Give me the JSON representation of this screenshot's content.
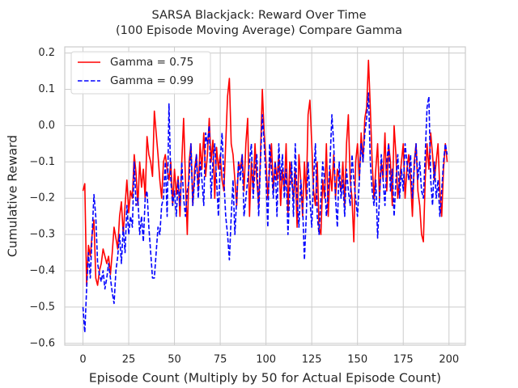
{
  "chart_data": {
    "type": "line",
    "title": "SARSA Blackjack: Reward Over Time\n(100 Episode Moving Average) Compare Gamma",
    "xlabel": "Episode Count (Multiply by 50 for Actual Episode Count)",
    "ylabel": "Cumulative Reward",
    "x": [
      0,
      1,
      2,
      3,
      4,
      5,
      6,
      7,
      8,
      9,
      10,
      11,
      12,
      13,
      14,
      15,
      16,
      17,
      18,
      19,
      20,
      21,
      22,
      23,
      24,
      25,
      26,
      27,
      28,
      29,
      30,
      31,
      32,
      33,
      34,
      35,
      36,
      37,
      38,
      39,
      40,
      41,
      42,
      43,
      44,
      45,
      46,
      47,
      48,
      49,
      50,
      51,
      52,
      53,
      54,
      55,
      56,
      57,
      58,
      59,
      60,
      61,
      62,
      63,
      64,
      65,
      66,
      67,
      68,
      69,
      70,
      71,
      72,
      73,
      74,
      75,
      76,
      77,
      78,
      79,
      80,
      81,
      82,
      83,
      84,
      85,
      86,
      87,
      88,
      89,
      90,
      91,
      92,
      93,
      94,
      95,
      96,
      97,
      98,
      99,
      100,
      101,
      102,
      103,
      104,
      105,
      106,
      107,
      108,
      109,
      110,
      111,
      112,
      113,
      114,
      115,
      116,
      117,
      118,
      119,
      120,
      121,
      122,
      123,
      124,
      125,
      126,
      127,
      128,
      129,
      130,
      131,
      132,
      133,
      134,
      135,
      136,
      137,
      138,
      139,
      140,
      141,
      142,
      143,
      144,
      145,
      146,
      147,
      148,
      149,
      150,
      151,
      152,
      153,
      154,
      155,
      156,
      157,
      158,
      159,
      160,
      161,
      162,
      163,
      164,
      165,
      166,
      167,
      168,
      169,
      170,
      171,
      172,
      173,
      174,
      175,
      176,
      177,
      178,
      179,
      180,
      181,
      182,
      183,
      184,
      185,
      186,
      187,
      188,
      189,
      190,
      191,
      192,
      193,
      194,
      195,
      196,
      197,
      198,
      199
    ],
    "series": [
      {
        "name": "Gamma = 0.75",
        "color": "#ff0000",
        "dash": "solid",
        "values": [
          -0.18,
          -0.16,
          -0.44,
          -0.33,
          -0.36,
          -0.3,
          -0.26,
          -0.42,
          -0.44,
          -0.4,
          -0.38,
          -0.34,
          -0.36,
          -0.38,
          -0.36,
          -0.41,
          -0.35,
          -0.28,
          -0.31,
          -0.34,
          -0.25,
          -0.21,
          -0.3,
          -0.22,
          -0.15,
          -0.24,
          -0.18,
          -0.2,
          -0.08,
          -0.13,
          -0.22,
          -0.1,
          -0.17,
          -0.12,
          -0.2,
          -0.03,
          -0.08,
          -0.1,
          -0.14,
          0.04,
          -0.02,
          -0.08,
          -0.15,
          -0.2,
          -0.1,
          -0.08,
          -0.12,
          -0.15,
          -0.1,
          -0.22,
          -0.12,
          -0.19,
          -0.14,
          -0.25,
          -0.1,
          0.02,
          -0.15,
          -0.3,
          -0.1,
          -0.05,
          -0.22,
          -0.12,
          -0.08,
          -0.18,
          -0.05,
          -0.12,
          -0.02,
          -0.14,
          -0.08,
          0.02,
          -0.1,
          -0.04,
          -0.2,
          -0.06,
          -0.12,
          -0.08,
          -0.15,
          -0.18,
          -0.05,
          0.08,
          0.13,
          -0.05,
          -0.08,
          -0.15,
          -0.22,
          -0.1,
          -0.12,
          -0.08,
          -0.18,
          -0.05,
          0.02,
          -0.25,
          -0.1,
          -0.18,
          -0.05,
          -0.15,
          -0.22,
          -0.08,
          0.1,
          -0.02,
          -0.1,
          -0.2,
          -0.12,
          -0.05,
          -0.18,
          -0.1,
          -0.15,
          -0.08,
          -0.22,
          -0.12,
          -0.18,
          -0.05,
          -0.24,
          -0.1,
          -0.15,
          -0.2,
          -0.12,
          -0.28,
          -0.08,
          -0.15,
          -0.25,
          -0.1,
          -0.2,
          0.03,
          0.07,
          -0.05,
          -0.18,
          -0.22,
          -0.1,
          -0.28,
          -0.3,
          -0.15,
          -0.2,
          -0.05,
          -0.25,
          -0.12,
          -0.18,
          -0.08,
          -0.2,
          -0.12,
          -0.15,
          -0.18,
          -0.1,
          -0.22,
          -0.05,
          0.03,
          -0.15,
          -0.2,
          -0.32,
          -0.1,
          -0.05,
          -0.15,
          -0.02,
          -0.1,
          0.02,
          0.05,
          0.18,
          0.05,
          -0.1,
          -0.2,
          -0.12,
          -0.05,
          -0.2,
          -0.1,
          -0.15,
          -0.02,
          -0.18,
          -0.05,
          -0.1,
          -0.22,
          0.0,
          -0.08,
          -0.2,
          -0.15,
          -0.1,
          -0.05,
          -0.2,
          -0.12,
          -0.08,
          -0.15,
          -0.25,
          -0.1,
          -0.05,
          -0.18,
          -0.22,
          -0.3,
          -0.32,
          -0.15,
          -0.05,
          -0.12,
          -0.02,
          -0.08,
          -0.15,
          -0.1,
          -0.05,
          -0.18,
          -0.25,
          -0.12,
          -0.05,
          -0.1
        ]
      },
      {
        "name": "Gamma = 0.99",
        "color": "#0000ff",
        "dash": "dashed",
        "values": [
          -0.5,
          -0.57,
          -0.45,
          -0.35,
          -0.42,
          -0.3,
          -0.19,
          -0.25,
          -0.38,
          -0.41,
          -0.43,
          -0.4,
          -0.45,
          -0.42,
          -0.38,
          -0.42,
          -0.46,
          -0.49,
          -0.4,
          -0.36,
          -0.3,
          -0.38,
          -0.28,
          -0.35,
          -0.22,
          -0.3,
          -0.25,
          -0.28,
          -0.1,
          -0.22,
          -0.2,
          -0.3,
          -0.25,
          -0.32,
          -0.2,
          -0.18,
          -0.28,
          -0.35,
          -0.42,
          -0.42,
          -0.35,
          -0.28,
          -0.3,
          -0.22,
          -0.2,
          -0.1,
          -0.25,
          0.06,
          -0.15,
          -0.22,
          -0.18,
          -0.25,
          -0.15,
          -0.22,
          -0.1,
          -0.2,
          -0.25,
          -0.18,
          -0.15,
          -0.05,
          -0.22,
          -0.15,
          -0.08,
          -0.2,
          -0.1,
          -0.15,
          -0.22,
          -0.02,
          -0.05,
          0.0,
          -0.2,
          -0.1,
          -0.05,
          -0.15,
          -0.25,
          -0.1,
          -0.02,
          -0.15,
          -0.25,
          -0.3,
          -0.37,
          -0.25,
          -0.15,
          -0.3,
          -0.2,
          -0.1,
          -0.15,
          -0.08,
          -0.25,
          -0.2,
          -0.15,
          -0.1,
          -0.05,
          -0.2,
          -0.12,
          -0.08,
          -0.25,
          -0.1,
          0.03,
          -0.05,
          -0.15,
          -0.28,
          -0.05,
          -0.12,
          -0.2,
          -0.1,
          -0.25,
          -0.05,
          -0.15,
          -0.08,
          -0.2,
          -0.12,
          -0.3,
          -0.18,
          -0.1,
          -0.25,
          -0.05,
          -0.2,
          -0.28,
          -0.15,
          -0.22,
          -0.37,
          -0.25,
          -0.1,
          -0.2,
          -0.28,
          -0.15,
          -0.05,
          -0.25,
          -0.3,
          -0.2,
          -0.1,
          -0.15,
          -0.25,
          -0.18,
          -0.1,
          0.03,
          -0.05,
          -0.2,
          -0.28,
          -0.1,
          -0.2,
          -0.15,
          -0.25,
          -0.12,
          -0.18,
          -0.22,
          -0.08,
          -0.15,
          -0.2,
          -0.25,
          -0.15,
          -0.05,
          -0.1,
          -0.02,
          0.02,
          0.09,
          -0.1,
          -0.18,
          -0.22,
          -0.15,
          -0.31,
          -0.2,
          -0.08,
          -0.15,
          -0.22,
          -0.1,
          -0.05,
          -0.18,
          -0.12,
          -0.25,
          -0.15,
          -0.08,
          -0.2,
          -0.12,
          -0.18,
          -0.05,
          -0.1,
          -0.15,
          -0.08,
          -0.2,
          -0.12,
          -0.05,
          -0.15,
          -0.1,
          -0.18,
          -0.2,
          -0.08,
          0.05,
          0.08,
          -0.15,
          -0.22,
          -0.1,
          -0.2,
          -0.15,
          -0.25,
          -0.18,
          -0.1,
          -0.05,
          -0.08
        ]
      }
    ],
    "xlim": [
      -9.95,
      208.95
    ],
    "ylim": [
      -0.605,
      0.217
    ],
    "xticks": [
      0,
      25,
      50,
      75,
      100,
      125,
      150,
      175,
      200
    ],
    "yticks": [
      {
        "value": -0.6,
        "label": "−0.6"
      },
      {
        "value": -0.5,
        "label": "−0.5"
      },
      {
        "value": -0.4,
        "label": "−0.4"
      },
      {
        "value": -0.3,
        "label": "−0.3"
      },
      {
        "value": -0.2,
        "label": "−0.2"
      },
      {
        "value": -0.1,
        "label": "−0.1"
      },
      {
        "value": 0,
        "label": "0.0"
      },
      0.1,
      0.2
    ],
    "grid": true,
    "legend": "upper left"
  }
}
